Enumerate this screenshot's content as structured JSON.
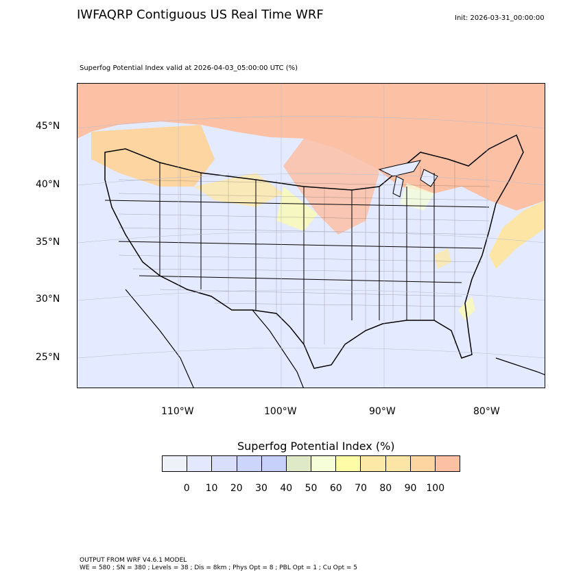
{
  "header": {
    "title": "IWFAQRP Contiguous US Real Time WRF",
    "init": "Init: 2026-03-31_00:00:00",
    "subtitle": "Superfog Potential Index valid at 2026-04-03_05:00:00 UTC   (%)"
  },
  "map": {
    "lat_labels": [
      "45°N",
      "40°N",
      "35°N",
      "30°N",
      "25°N"
    ],
    "lon_labels": [
      "110°W",
      "100°W",
      "90°W",
      "80°W"
    ],
    "background_color": "#e4eaff"
  },
  "colorbar": {
    "title": "Superfog Potential Index  (%)",
    "tick_labels": [
      "0",
      "10",
      "20",
      "30",
      "40",
      "50",
      "60",
      "70",
      "80",
      "90",
      "100"
    ],
    "colors": [
      "#eef1f8",
      "#e4e8fe",
      "#d8defc",
      "#ccd5fc",
      "#c7cffb",
      "#dfe9c7",
      "#f5fdd9",
      "#fefca6",
      "#fee8a8",
      "#fde5a6",
      "#fcd5a1",
      "#fcc0a4"
    ]
  },
  "footer": {
    "line1": "OUTPUT FROM WRF V4.6.1 MODEL",
    "line2": "WE = 580 ; SN = 380 ; Levels = 38 ; Dis = 8km ; Phys Opt = 8 ; PBL Opt = 1 ; Cu Opt = 5"
  }
}
